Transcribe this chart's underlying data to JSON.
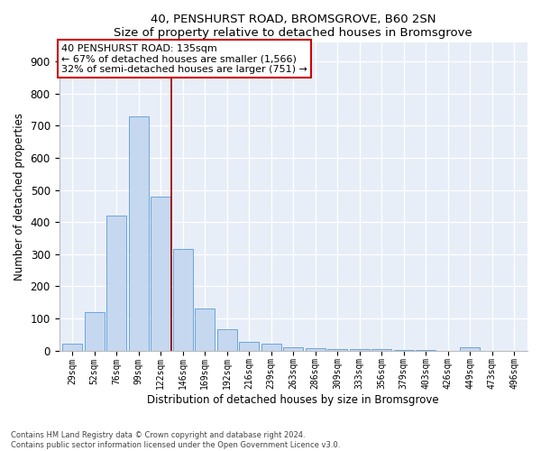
{
  "title1": "40, PENSHURST ROAD, BROMSGROVE, B60 2SN",
  "title2": "Size of property relative to detached houses in Bromsgrove",
  "xlabel": "Distribution of detached houses by size in Bromsgrove",
  "ylabel": "Number of detached properties",
  "bar_color": "#c5d8f0",
  "bar_edge_color": "#5b9bd5",
  "categories": [
    "29sqm",
    "52sqm",
    "76sqm",
    "99sqm",
    "122sqm",
    "146sqm",
    "169sqm",
    "192sqm",
    "216sqm",
    "239sqm",
    "263sqm",
    "286sqm",
    "309sqm",
    "333sqm",
    "356sqm",
    "379sqm",
    "403sqm",
    "426sqm",
    "449sqm",
    "473sqm",
    "496sqm"
  ],
  "values": [
    20,
    120,
    420,
    730,
    480,
    315,
    130,
    65,
    28,
    20,
    10,
    8,
    5,
    5,
    3,
    1,
    1,
    0,
    10,
    0,
    0
  ],
  "vline_x": 4.5,
  "vline_color": "#990000",
  "annotation_line1": "40 PENSHURST ROAD: 135sqm",
  "annotation_line2": "← 67% of detached houses are smaller (1,566)",
  "annotation_line3": "32% of semi-detached houses are larger (751) →",
  "annotation_box_color": "#ffffff",
  "annotation_box_edge": "#cc0000",
  "ylim": [
    0,
    960
  ],
  "yticks": [
    0,
    100,
    200,
    300,
    400,
    500,
    600,
    700,
    800,
    900
  ],
  "footer1": "Contains HM Land Registry data © Crown copyright and database right 2024.",
  "footer2": "Contains public sector information licensed under the Open Government Licence v3.0.",
  "plot_bg_color": "#e8eef8"
}
